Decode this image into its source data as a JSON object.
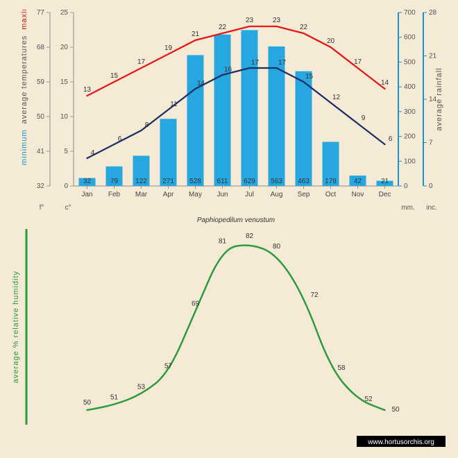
{
  "background_color": "#f5ead5",
  "months": [
    "Jan",
    "Feb",
    "Mar",
    "Apr",
    "May",
    "Jun",
    "Jul",
    "Aug",
    "Sep",
    "Oct",
    "Nov",
    "Dec"
  ],
  "top": {
    "axis_left_f": {
      "label": "f°",
      "ticks": [
        32,
        41,
        50,
        59,
        68,
        77
      ],
      "color": "#555"
    },
    "axis_left_c": {
      "label": "c°",
      "ticks": [
        0,
        5,
        10,
        15,
        20,
        25
      ],
      "color": "#555"
    },
    "axis_right_mm": {
      "label": "mm.",
      "ticks": [
        0,
        100,
        200,
        300,
        400,
        500,
        600,
        700
      ],
      "color": "#1893d1"
    },
    "axis_right_in": {
      "label": "inc.",
      "ticks": [
        0,
        7,
        14,
        21,
        28
      ],
      "color": "#555"
    },
    "ytitle": {
      "minimum": {
        "text": "minimum",
        "color": "#1893d1"
      },
      "average_temperatures": {
        "text": "average temperatures",
        "color": "#555"
      },
      "maximum": {
        "text": "maximum",
        "color": "#c41919"
      }
    },
    "rainfall_title": {
      "text": "average rainfall",
      "color": "#555"
    },
    "rainfall_bars": {
      "values_mm": [
        32,
        79,
        122,
        271,
        528,
        611,
        629,
        563,
        463,
        178,
        42,
        21
      ],
      "color": "#27a7e0",
      "max": 700
    },
    "max_line": {
      "values_c": [
        13,
        15,
        17,
        19,
        21,
        22,
        23,
        23,
        22,
        20,
        17,
        14
      ],
      "color": "#e31818",
      "width": 2.3
    },
    "min_line": {
      "values_c": [
        4,
        6,
        8,
        11,
        14,
        16,
        17,
        17,
        15,
        12,
        9,
        6
      ],
      "color": "#1e2f66",
      "width": 2.3
    }
  },
  "species": "Paphiopedilum venustum",
  "bottom": {
    "ytitle": {
      "text": "average % relative humidity",
      "color": "#2a9b3d"
    },
    "axis_color": "#2a9b3d",
    "line": {
      "values": [
        50,
        51,
        53,
        57,
        69,
        81,
        82,
        80,
        72,
        58,
        52,
        50
      ],
      "color": "#2a9b3d",
      "width": 2.5
    }
  },
  "credit": {
    "text": "www.hortusorchis.org",
    "bg": "#000",
    "fg": "#fff"
  },
  "colors": {
    "axis_grey": "#8a8a8a",
    "tick_grey": "#9a9a9a",
    "text": "#444"
  }
}
